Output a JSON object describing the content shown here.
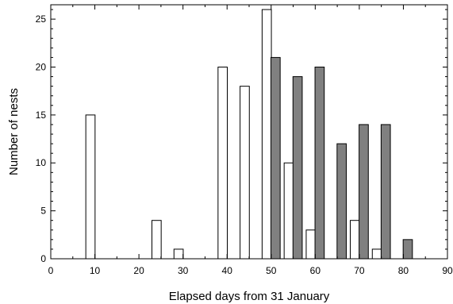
{
  "chart_data": {
    "type": "bar",
    "xlabel": "Elapsed days from 31 January",
    "ylabel": "Number of nests",
    "xlim": [
      0,
      90
    ],
    "ylim": [
      0,
      26.5
    ],
    "x_ticks": [
      0,
      10,
      20,
      30,
      40,
      50,
      60,
      70,
      80,
      90
    ],
    "y_ticks": [
      0,
      5,
      10,
      15,
      20,
      25
    ],
    "grid": false,
    "series": [
      {
        "color": "#ffffff",
        "x": [
          9,
          24,
          29,
          39,
          44,
          49,
          54,
          59,
          69,
          74
        ],
        "values": [
          15,
          4,
          1,
          20,
          18,
          26,
          10,
          3,
          4,
          1
        ]
      },
      {
        "color": "#808080",
        "x": [
          51,
          56,
          61,
          66,
          71,
          76,
          81
        ],
        "values": [
          21,
          19,
          20,
          12,
          14,
          14,
          2
        ]
      }
    ]
  }
}
